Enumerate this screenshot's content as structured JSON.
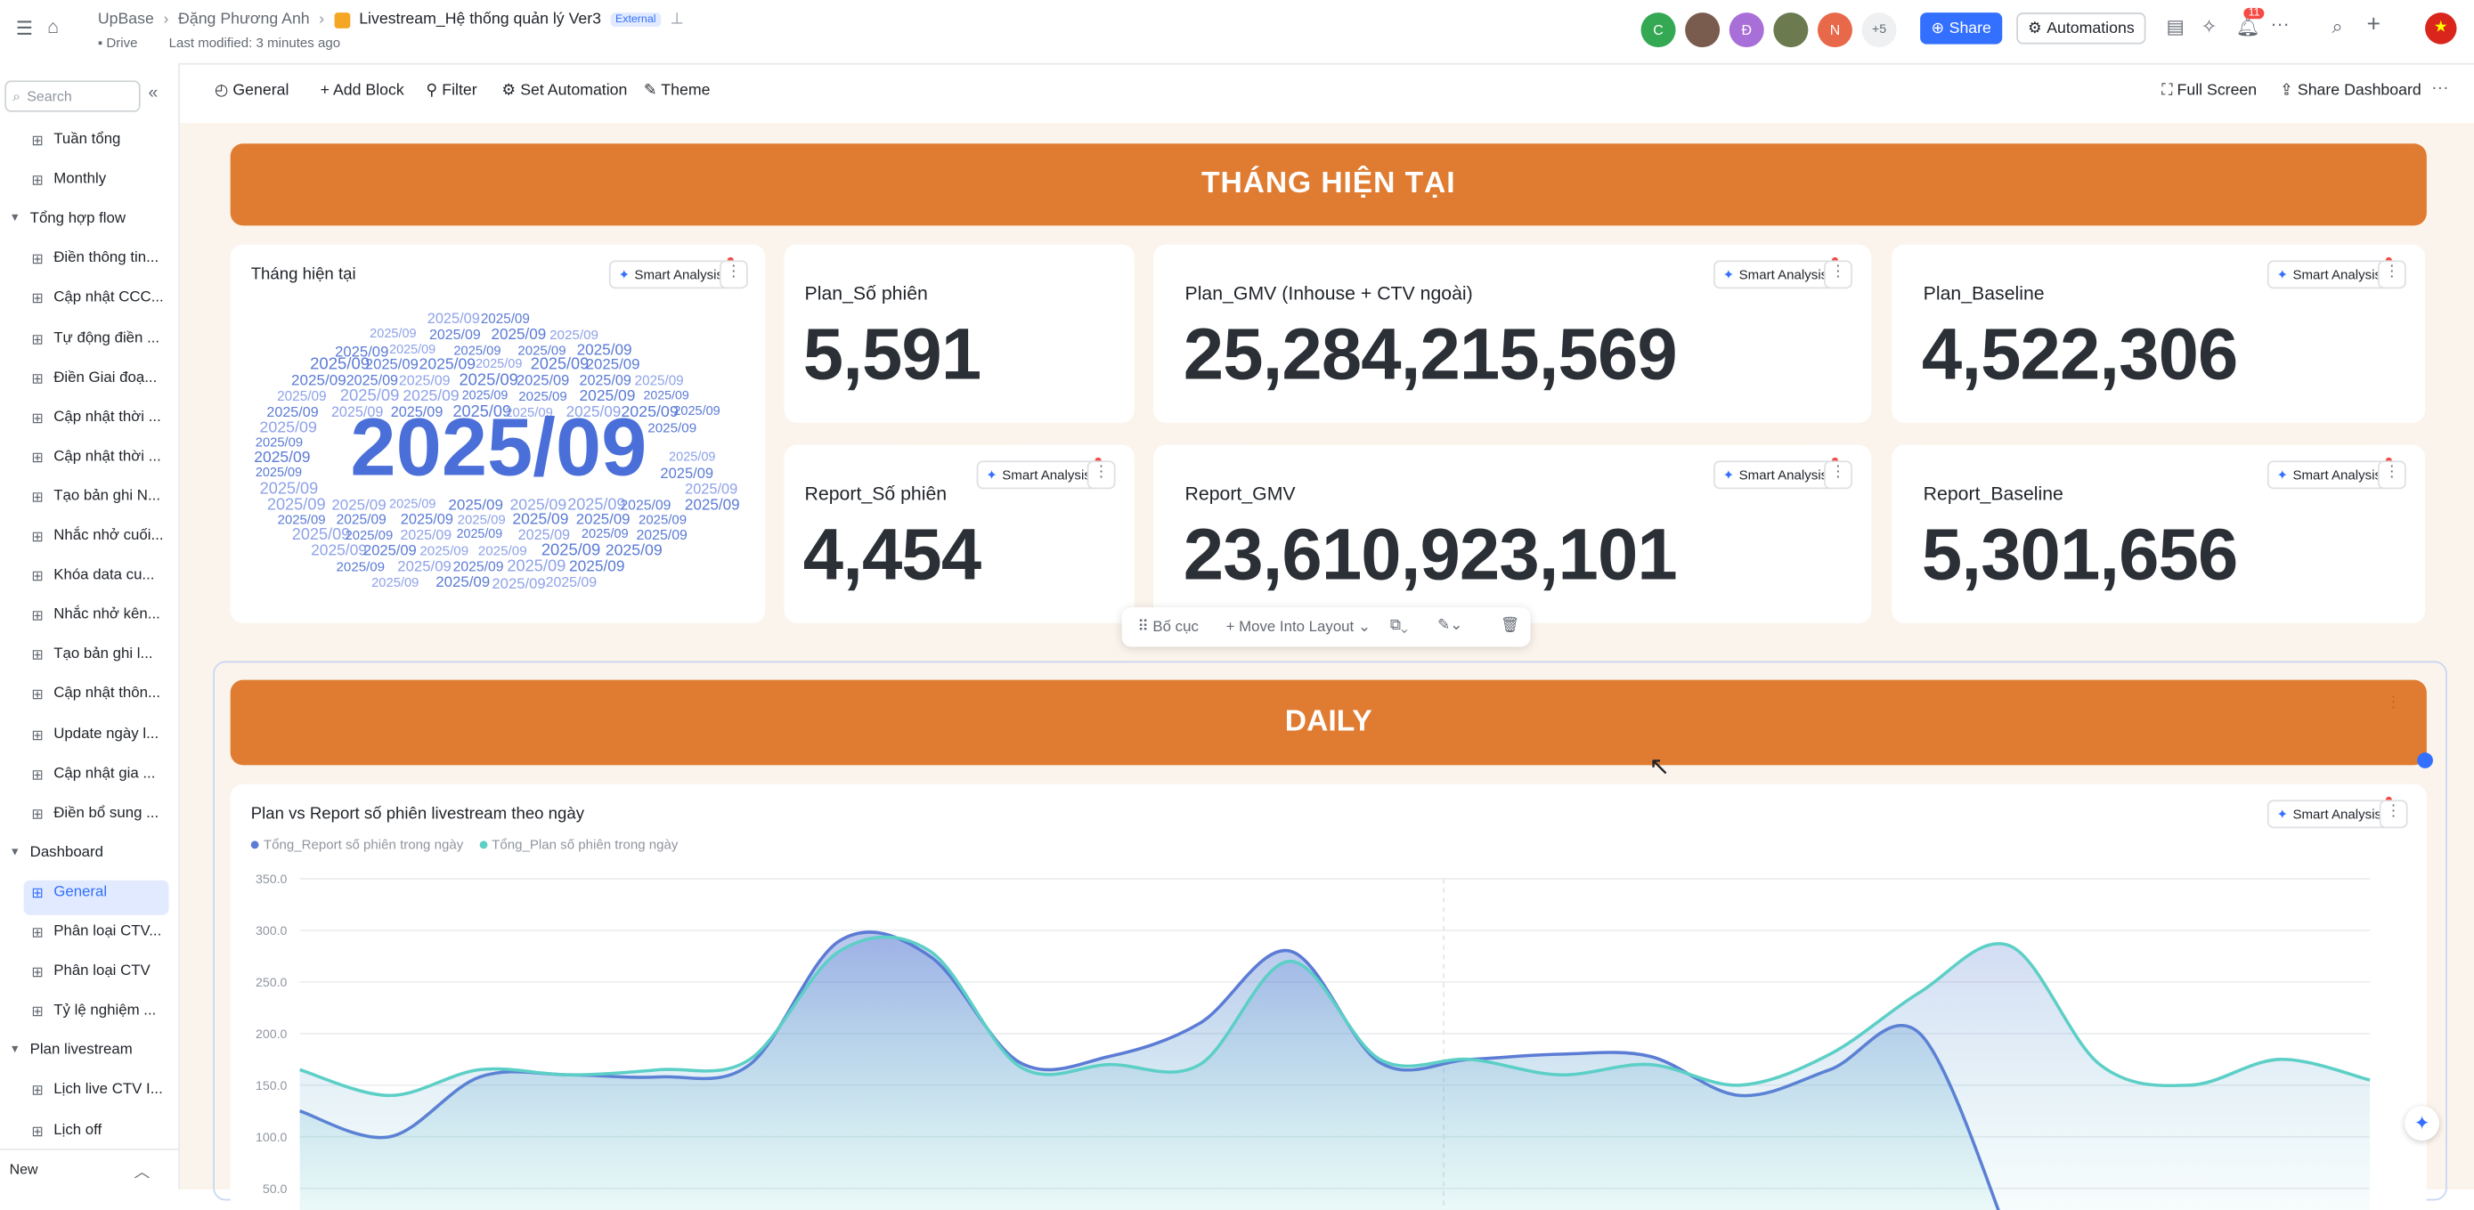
{
  "header": {
    "breadcrumb": [
      "UpBase",
      "Đặng Phương Anh",
      "Livestream_Hệ thống quản lý Ver3"
    ],
    "badge": "External",
    "location": "Drive",
    "modified": "Last modified: 3 minutes ago",
    "avatars": [
      "C",
      "Đ",
      "N"
    ],
    "more_avatars": "+5",
    "share": "Share",
    "automations": "Automations",
    "notifications": "11"
  },
  "sidebar": {
    "search": "Search",
    "top_items": [
      "Tuần tổng",
      "Monthly"
    ],
    "groups": [
      {
        "name": "Tổng hợp flow",
        "items": [
          "Điền thông tin...",
          "Cập nhật CCC...",
          "Tự động điền ...",
          "Điền Giai đoạ...",
          "Cập nhật thời ...",
          "Cập nhật thời ...",
          "Tạo bản ghi N...",
          "Nhắc nhở cuối...",
          "Khóa data cu...",
          "Nhắc nhở kên...",
          "Tạo bản ghi l...",
          "Cập nhật thôn...",
          "Update ngày l...",
          "Cập nhật gia ...",
          "Điền bổ sung ..."
        ]
      },
      {
        "name": "Dashboard",
        "items": [
          "General",
          "Phân loại CTV...",
          "Phân loại CTV",
          "Tỷ lệ nghiệm ..."
        ]
      },
      {
        "name": "Plan livestream",
        "items": [
          "Lịch live CTV I...",
          "Lịch off"
        ]
      }
    ],
    "new": "New"
  },
  "toolbar": {
    "left": [
      "General",
      "Add Block",
      "Filter",
      "Set Automation",
      "Theme"
    ],
    "right": [
      "Full Screen",
      "Share Dashboard"
    ]
  },
  "banners": [
    "THÁNG HIỆN TẠI",
    "DAILY"
  ],
  "smart_analysis": "Smart Analysis",
  "wordcloud": {
    "title": "Tháng hiện tại",
    "word": "2025/09"
  },
  "metrics": [
    {
      "label": "Plan_Số phiên",
      "value": "5,591",
      "smart_analysis": false
    },
    {
      "label": "Plan_GMV (Inhouse + CTV ngoài)",
      "value": "25,284,215,569",
      "smart_analysis": true
    },
    {
      "label": "Plan_Baseline",
      "value": "4,522,306",
      "smart_analysis": true
    },
    {
      "label": "Report_Số phiên",
      "value": "4,454",
      "smart_analysis": true
    },
    {
      "label": "Report_GMV",
      "value": "23,610,923,101",
      "smart_analysis": true
    },
    {
      "label": "Report_Baseline",
      "value": "5,301,656",
      "smart_analysis": true
    }
  ],
  "floating_toolbar": [
    "Bố cục",
    "Move Into Layout"
  ],
  "chart_data": {
    "type": "line",
    "title": "Plan vs Report số phiên livestream theo ngày",
    "categories": [
      null,
      null,
      null,
      null,
      null,
      null,
      null,
      null,
      null,
      null,
      null,
      null,
      null,
      null,
      null,
      null,
      null,
      null,
      null,
      null,
      null,
      null,
      null,
      null
    ],
    "series": [
      {
        "name": "Tổng_Report số phiên trong ngày",
        "color": "#5b7bd5",
        "values": [
          125,
          100,
          158,
          160,
          158,
          170,
          290,
          275,
          172,
          178,
          210,
          280,
          172,
          175,
          180,
          178,
          140,
          165,
          200,
          0,
          null,
          null,
          null,
          null
        ]
      },
      {
        "name": "Tổng_Plan số phiên trong ngày",
        "color": "#5ccfc6",
        "values": [
          165,
          140,
          165,
          160,
          165,
          175,
          280,
          280,
          168,
          170,
          170,
          270,
          175,
          175,
          160,
          170,
          150,
          180,
          240,
          285,
          170,
          150,
          175,
          155
        ]
      }
    ],
    "ylim": [
      0,
      350
    ],
    "yticks": [
      {
        "value": 50,
        "label": "50.0"
      },
      {
        "value": 100,
        "label": "100.0"
      },
      {
        "value": 150,
        "label": "150.0"
      },
      {
        "value": 200,
        "label": "200.0"
      },
      {
        "value": 250,
        "label": "250.0"
      },
      {
        "value": 300,
        "label": "300.0"
      },
      {
        "value": 350,
        "label": "350.0"
      }
    ],
    "grid": true
  }
}
